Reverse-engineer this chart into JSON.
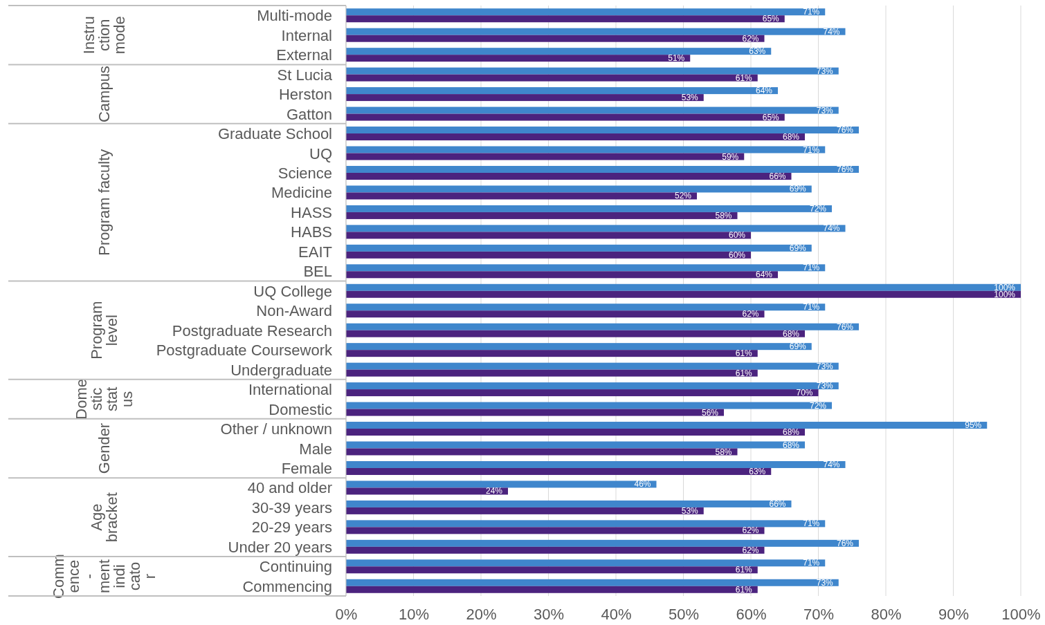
{
  "chart_data": {
    "type": "bar",
    "orientation": "horizontal",
    "grid": "x",
    "categories": [
      "Multi-mode",
      "Internal",
      "External",
      "St Lucia",
      "Herston",
      "Gatton",
      "Graduate School",
      "UQ",
      "Science",
      "Medicine",
      "HASS",
      "HABS",
      "EAIT",
      "BEL",
      "UQ College",
      "Non-Award",
      "Postgraduate Research",
      "Postgraduate Coursework",
      "Undergraduate",
      "International",
      "Domestic",
      "Other / unknown",
      "Male",
      "Female",
      "40 and older",
      "30-39 years",
      "20-29 years",
      "Under 20 years",
      "Continuing",
      "Commencing"
    ],
    "series": [
      {
        "color": "#3f86cc",
        "values": [
          71,
          74,
          63,
          73,
          64,
          73,
          76,
          71,
          76,
          69,
          72,
          74,
          69,
          71,
          100,
          71,
          76,
          69,
          73,
          73,
          72,
          95,
          68,
          74,
          46,
          66,
          71,
          76,
          71,
          73
        ],
        "value_labels": [
          "71%",
          "74%",
          "63%",
          "73%",
          "64%",
          "73%",
          "76%",
          "71%",
          "76%",
          "69%",
          "72%",
          "74%",
          "69%",
          "71%",
          "100%",
          "71%",
          "76%",
          "69%",
          "73%",
          "73%",
          "72%",
          "95%",
          "68%",
          "74%",
          "46%",
          "66%",
          "71%",
          "76%",
          "71%",
          "73%"
        ]
      },
      {
        "color": "#4b237e",
        "values": [
          65,
          62,
          51,
          61,
          53,
          65,
          68,
          59,
          66,
          52,
          58,
          60,
          60,
          64,
          100,
          62,
          68,
          61,
          61,
          70,
          56,
          68,
          58,
          63,
          24,
          53,
          62,
          62,
          61,
          61
        ],
        "value_labels": [
          "65%",
          "62%",
          "51%",
          "61%",
          "53%",
          "65%",
          "68%",
          "59%",
          "66%",
          "52%",
          "58%",
          "60%",
          "60%",
          "64%",
          "100%",
          "62%",
          "68%",
          "61%",
          "61%",
          "70%",
          "56%",
          "68%",
          "58%",
          "63%",
          "24%",
          "53%",
          "62%",
          "62%",
          "61%",
          "61%"
        ]
      }
    ],
    "xlim": [
      0,
      100
    ],
    "xticks": [
      {
        "value": 0,
        "label": "0%"
      },
      {
        "value": 10,
        "label": "10%"
      },
      {
        "value": 20,
        "label": "20%"
      },
      {
        "value": 30,
        "label": "30%"
      },
      {
        "value": 40,
        "label": "40%"
      },
      {
        "value": 50,
        "label": "50%"
      },
      {
        "value": 60,
        "label": "60%"
      },
      {
        "value": 70,
        "label": "70%"
      },
      {
        "value": 80,
        "label": "80%"
      },
      {
        "value": 90,
        "label": "90%"
      },
      {
        "value": 100,
        "label": "100%"
      }
    ],
    "annotations": [
      "Instruction mode",
      "Campus",
      "Program faculty",
      "Program level",
      "Domestic status",
      "Gender",
      "Age bracket",
      "Commence-ment indicator"
    ]
  }
}
